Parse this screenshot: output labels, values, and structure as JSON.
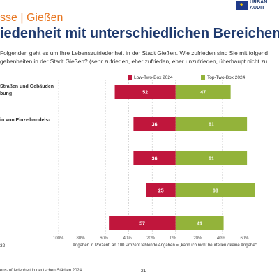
{
  "header": {
    "title_top": "sse | Gießen",
    "title_main": "iedenheit mit unterschiedlichen Bereichen -"
  },
  "logo": {
    "line1": "URBAN",
    "line2": "AUDIT"
  },
  "question": {
    "line1": "Folgenden geht es um Ihre Lebenszufriedenheit in der Stadt Gießen. Wie zufrieden sind Sie mit folgend",
    "line2": "gebenheiten in der Stadt Gießen? (sehr zufrieden, eher zufrieden, eher unzufrieden, überhaupt nicht zu"
  },
  "colors": {
    "low": "#c0163c",
    "top": "#93b33a",
    "grid": "#bfbfbf"
  },
  "chart_data": {
    "type": "bar",
    "orientation": "horizontal-diverging",
    "categories": [
      [
        "Straßen und Gebäuden",
        "bung"
      ],
      [
        "in von Einzelhandels-"
      ],
      [
        ""
      ],
      [
        ""
      ],
      [
        ""
      ]
    ],
    "series": [
      {
        "name": "Low-Two-Box 2024",
        "values": [
          52,
          36,
          36,
          25,
          57
        ]
      },
      {
        "name": "Top-Two-Box 2024",
        "values": [
          47,
          61,
          61,
          68,
          41
        ]
      }
    ],
    "xlim": [
      -100,
      80
    ],
    "xticks": [
      "100%",
      "80%",
      "60%",
      "40%",
      "20%",
      "0%",
      "20%",
      "40%",
      "60%"
    ],
    "grid": true,
    "legend_position": "top"
  },
  "footnote": {
    "left": "32",
    "right": "Angaben in Prozent; an 100 Prozent fehlende Angaben = „kann ich nicht beurteilen / keine Angabe“"
  },
  "footer": {
    "left": "enszufriedenheit in deutschen Städten 2024",
    "page": "21"
  }
}
